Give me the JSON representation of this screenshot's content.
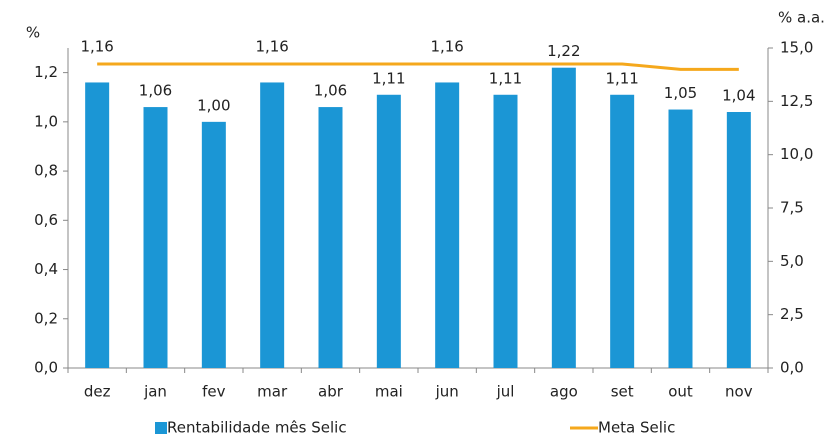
{
  "chart_data": {
    "type": "bar_line",
    "ylabel": "%",
    "y2label": "% a.a.",
    "categories": [
      "dez",
      "jan",
      "fev",
      "mar",
      "abr",
      "mai",
      "jun",
      "jul",
      "ago",
      "set",
      "out",
      "nov"
    ],
    "series": [
      {
        "name": "Rentabilidade mês Selic",
        "type": "bar",
        "color": "#1b96d5",
        "values": [
          1.16,
          1.06,
          1.0,
          1.16,
          1.06,
          1.11,
          1.16,
          1.11,
          1.22,
          1.11,
          1.05,
          1.04
        ],
        "value_labels": [
          "1,16",
          "1,06",
          "1,00",
          "1,16",
          "1,06",
          "1,11",
          "1,16",
          "1,11",
          "1,22",
          "1,11",
          "1,05",
          "1,04"
        ]
      },
      {
        "name": "Meta Selic",
        "type": "line",
        "axis": "y2",
        "color": "#f5a81c",
        "values": [
          14.25,
          14.25,
          14.25,
          14.25,
          14.25,
          14.25,
          14.25,
          14.25,
          14.25,
          14.25,
          14.0,
          14.0
        ]
      }
    ],
    "ylim": [
      0,
      1.3
    ],
    "yticks": [
      {
        "value": 0,
        "label": "0,0"
      },
      {
        "value": 0.2,
        "label": "0,2"
      },
      {
        "value": 0.4,
        "label": "0,4"
      },
      {
        "value": 0.6,
        "label": "0,6"
      },
      {
        "value": 0.8,
        "label": "0,8"
      },
      {
        "value": 1.0,
        "label": "1,0"
      },
      {
        "value": 1.2,
        "label": "1,2"
      }
    ],
    "y2lim": [
      0,
      15
    ],
    "y2ticks": [
      {
        "value": 0,
        "label": "0,0"
      },
      {
        "value": 2.5,
        "label": "2,5"
      },
      {
        "value": 5,
        "label": "5,0"
      },
      {
        "value": 7.5,
        "label": "7,5"
      },
      {
        "value": 10,
        "label": "10,0"
      },
      {
        "value": 12.5,
        "label": "12,5"
      },
      {
        "value": 15,
        "label": "15,0"
      }
    ],
    "legend": "bottom"
  }
}
